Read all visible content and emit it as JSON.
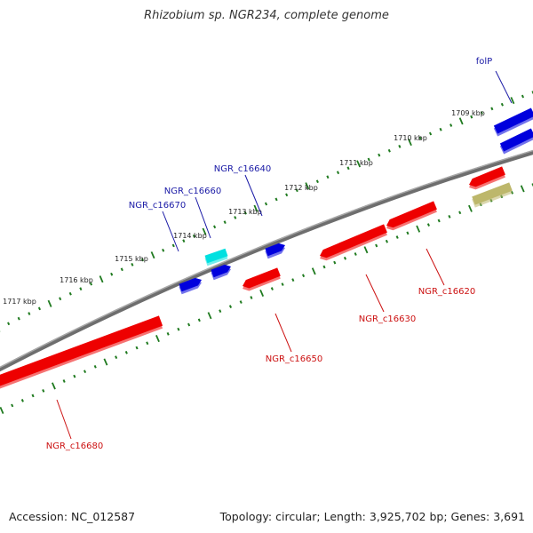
{
  "title": "Rhizobium sp. NGR234, complete genome",
  "footer": {
    "accession": "Accession: NC_012587",
    "topology": "Topology: circular; Length: 3,925,702 bp; Genes: 3,691"
  },
  "colors": {
    "forward": "#0000dd",
    "reverse": "#ee0000",
    "highlight": "#00e0e0",
    "other": "#bdb76b",
    "backbone": "#808080",
    "tick": "#1f7a1f",
    "label_forward": "#1a1aa6",
    "label_reverse": "#cc1111"
  },
  "ticks": [
    "1709 kbp",
    "1710 kbp",
    "1711 kbp",
    "1712 kbp",
    "1713 kbp",
    "1714 kbp",
    "1715 kbp",
    "1716 kbp",
    "1717 kbp"
  ],
  "genes": [
    {
      "label": "folP",
      "strand": "forward"
    },
    {
      "label": "NGR_c16640",
      "strand": "forward"
    },
    {
      "label": "NGR_c16660",
      "strand": "forward"
    },
    {
      "label": "NGR_c16670",
      "strand": "forward"
    },
    {
      "label": "NGR_c16620",
      "strand": "reverse"
    },
    {
      "label": "NGR_c16630",
      "strand": "reverse"
    },
    {
      "label": "NGR_c16650",
      "strand": "reverse"
    },
    {
      "label": "NGR_c16680",
      "strand": "reverse"
    }
  ]
}
